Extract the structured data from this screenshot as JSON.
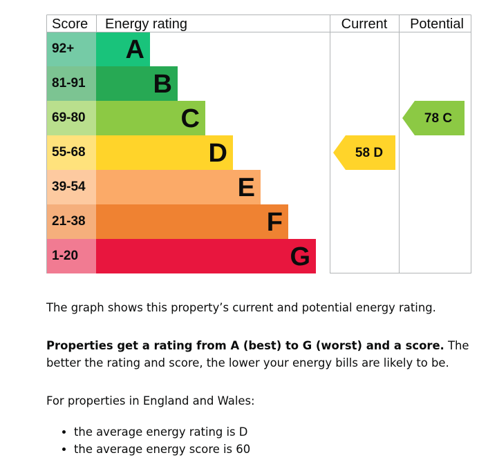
{
  "chart": {
    "headers": {
      "score": "Score",
      "rating": "Energy rating",
      "current": "Current",
      "potential": "Potential"
    },
    "bands": [
      {
        "score": "92+",
        "letter": "A",
        "color": "#19c37b",
        "light": "#75cba6"
      },
      {
        "score": "81-91",
        "letter": "B",
        "color": "#27a954",
        "light": "#7cc492"
      },
      {
        "score": "69-80",
        "letter": "C",
        "color": "#8cc944",
        "light": "#b9df8d"
      },
      {
        "score": "55-68",
        "letter": "D",
        "color": "#ffd42a",
        "light": "#ffe27c"
      },
      {
        "score": "39-54",
        "letter": "E",
        "color": "#fbaa68",
        "light": "#fdcaa0"
      },
      {
        "score": "21-38",
        "letter": "F",
        "color": "#ef8232",
        "light": "#f5af7c"
      },
      {
        "score": "1-20",
        "letter": "G",
        "color": "#e8163e",
        "light": "#f17b92"
      }
    ],
    "current": {
      "score": "58",
      "letter": "D",
      "text": "58  D",
      "color": "#ffd42a"
    },
    "potential": {
      "score": "78",
      "letter": "C",
      "text": "78  C",
      "color": "#8cc944"
    },
    "border_color": "#b1b4b6"
  },
  "text": {
    "intro": "The graph shows this property’s current and potential energy rating.",
    "bold_sentence": "Properties get a rating from A (best) to G (worst) and a score.",
    "rest_sentence": " The better the rating and score, the lower your energy bills are likely to be.",
    "region_note": "For properties in England and Wales:",
    "bullets": [
      "the average energy rating is D",
      "the average energy score is 60"
    ]
  }
}
